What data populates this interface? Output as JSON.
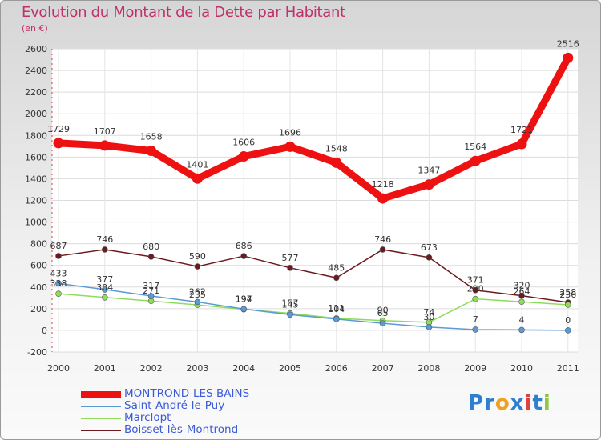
{
  "chart_data": {
    "type": "line",
    "title": "Evolution du Montant de la Dette par Habitant",
    "subtitle": "(en €)",
    "x": [
      "2000",
      "2001",
      "2002",
      "2003",
      "2004",
      "2005",
      "2006",
      "2007",
      "2008",
      "2009",
      "2010",
      "2011"
    ],
    "ylim": [
      -200,
      2600
    ],
    "yticks": [
      -200,
      0,
      200,
      400,
      600,
      800,
      1000,
      1200,
      1400,
      1600,
      1800,
      2000,
      2200,
      2400,
      2600
    ],
    "grid": true,
    "legend_position": "bottom-left",
    "series": [
      {
        "name": "MONTROND-LES-BAINS",
        "color": "#ee1111",
        "values": [
          1729,
          1707,
          1658,
          1401,
          1606,
          1696,
          1548,
          1218,
          1347,
          1564,
          1721,
          2516
        ]
      },
      {
        "name": "Saint-André-le-Puy",
        "color": "#5a9ad6",
        "values": [
          433,
          377,
          317,
          262,
          197,
          145,
          104,
          65,
          30,
          7,
          4,
          0
        ]
      },
      {
        "name": "Marclopt",
        "color": "#8edc5a",
        "values": [
          338,
          304,
          271,
          235,
          194,
          157,
          111,
          90,
          74,
          290,
          264,
          236
        ]
      },
      {
        "name": "Boisset-lès-Montrond",
        "color": "#6b1a1f",
        "values": [
          687,
          746,
          680,
          590,
          686,
          577,
          485,
          746,
          673,
          371,
          320,
          258
        ]
      }
    ]
  },
  "logo": {
    "text": "Proxiti",
    "letters": [
      {
        "ch": "P",
        "color": "#2f7fd0"
      },
      {
        "ch": "r",
        "color": "#2f7fd0"
      },
      {
        "ch": "o",
        "color": "#f0a020"
      },
      {
        "ch": "x",
        "color": "#2f7fd0"
      },
      {
        "ch": "i",
        "color": "#e04040"
      },
      {
        "ch": "t",
        "color": "#2f7fd0"
      },
      {
        "ch": "i",
        "color": "#8cc840"
      }
    ]
  }
}
